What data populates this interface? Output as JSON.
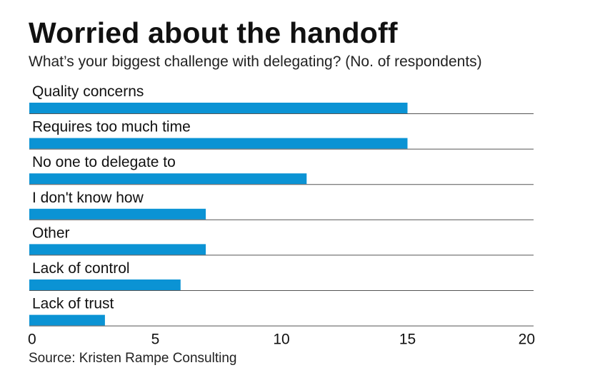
{
  "chart_data": {
    "type": "bar",
    "orientation": "horizontal",
    "title": "Worried about the handoff",
    "subtitle": "What’s your biggest challenge with delegating? (No. of respondents)",
    "categories": [
      "Quality concerns",
      "Requires too much time",
      "No one to delegate to",
      "I don't know how",
      "Other",
      "Lack of control",
      "Lack of trust"
    ],
    "values": [
      15,
      15,
      11,
      7,
      7,
      6,
      3
    ],
    "xlim": [
      0,
      20
    ],
    "xticks": [
      0,
      5,
      10,
      15,
      20
    ],
    "xtick_labels": [
      "0",
      "5",
      "10",
      "15",
      "20"
    ],
    "xlabel": "",
    "ylabel": "",
    "grid": false,
    "bar_color": "#0b93d4",
    "separator_color": "#555555",
    "source": "Source: Kristen Rampe Consulting"
  }
}
